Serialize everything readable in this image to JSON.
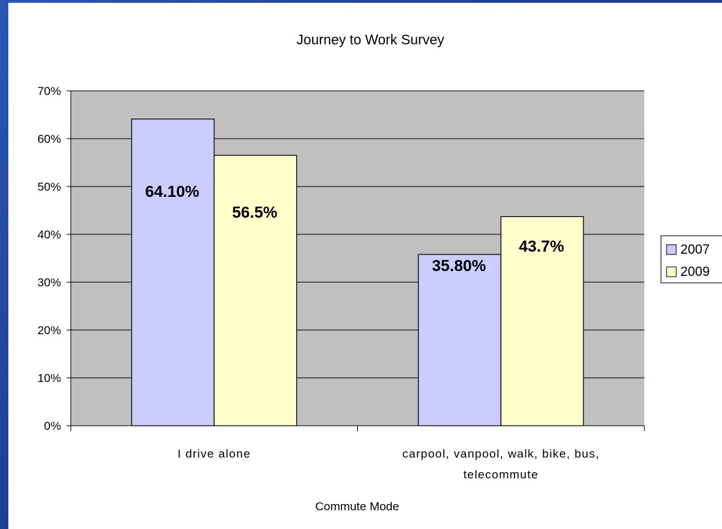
{
  "chart_data": {
    "type": "bar",
    "title": "Journey to Work Survey",
    "xlabel": "Commute Mode",
    "ylabel": "",
    "categories": [
      [
        "I drive alone"
      ],
      [
        "carpool, vanpool, walk, bike, bus,",
        "telecommute"
      ]
    ],
    "series": [
      {
        "name": "2007",
        "values": [
          64.1,
          35.8
        ],
        "labels": [
          "64.10%",
          "35.80%"
        ],
        "color": "#ccccff"
      },
      {
        "name": "2009",
        "values": [
          56.5,
          43.7
        ],
        "labels": [
          "56.5%",
          "43.7%"
        ],
        "color": "#ffffcc"
      }
    ],
    "ylim": [
      0,
      70
    ],
    "yticks": [
      "0%",
      "10%",
      "20%",
      "30%",
      "40%",
      "50%",
      "60%",
      "70%"
    ],
    "grid": true,
    "plot_background": "#c0c0c0",
    "legend": "right"
  }
}
